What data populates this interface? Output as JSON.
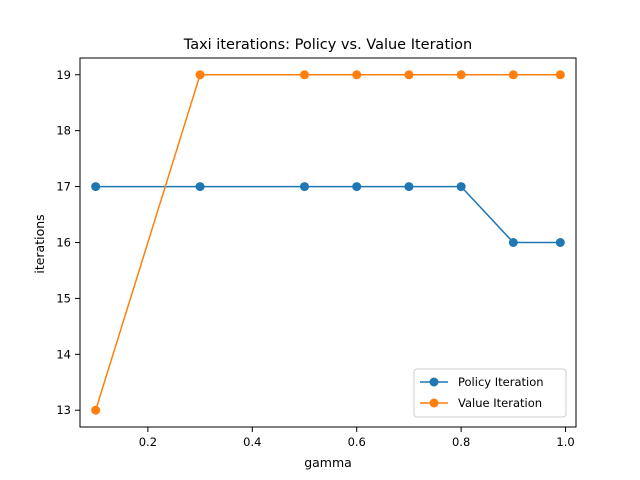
{
  "chart_data": {
    "type": "line",
    "title": "Taxi iterations: Policy vs. Value Iteration",
    "xlabel": "gamma",
    "ylabel": "iterations",
    "xlim": [
      0.07,
      1.02
    ],
    "ylim": [
      12.7,
      19.3
    ],
    "xticks": [
      "0.2",
      "0.4",
      "0.6",
      "0.8",
      "1.0"
    ],
    "yticks": [
      "13",
      "14",
      "15",
      "16",
      "17",
      "18",
      "19"
    ],
    "grid": false,
    "legend_position": "lower-right",
    "series": [
      {
        "name": "Policy Iteration",
        "color": "#1f77b4",
        "marker": "circle",
        "x": [
          0.1,
          0.3,
          0.5,
          0.6,
          0.7,
          0.8,
          0.9,
          0.99
        ],
        "y": [
          17,
          17,
          17,
          17,
          17,
          17,
          16,
          16
        ]
      },
      {
        "name": "Value Iteration",
        "color": "#ff7f0e",
        "marker": "circle",
        "x": [
          0.1,
          0.3,
          0.5,
          0.6,
          0.7,
          0.8,
          0.9,
          0.99
        ],
        "y": [
          13,
          19,
          19,
          19,
          19,
          19,
          19,
          19
        ]
      }
    ]
  }
}
